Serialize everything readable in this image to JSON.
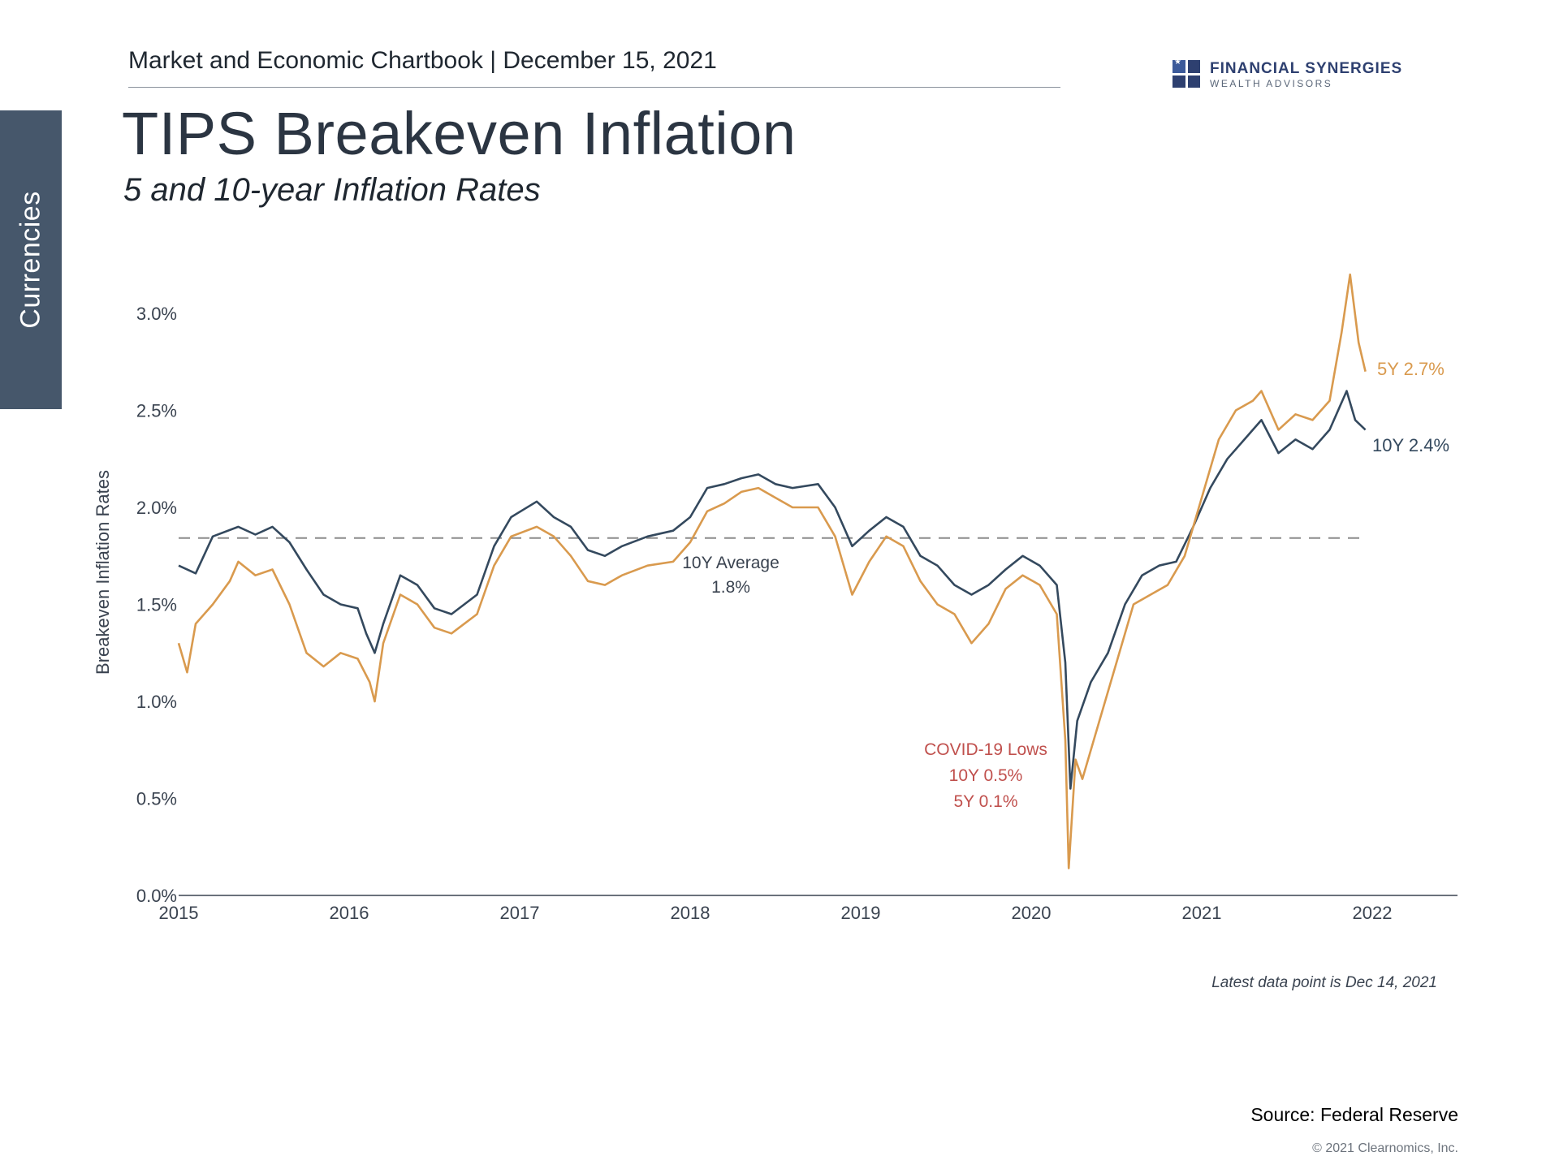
{
  "side_tab": {
    "label": "Currencies"
  },
  "header": {
    "breadcrumb": "Market and Economic Chartbook | December 15, 2021",
    "title": "TIPS Breakeven Inflation",
    "subtitle": "5 and 10-year Inflation Rates"
  },
  "logo": {
    "name": "FINANCIAL SYNERGIES",
    "tagline": "WEALTH ADVISORS",
    "icon": "flag-grid-logo-icon"
  },
  "colors": {
    "ten_year": "#34495e",
    "five_year": "#d99a4e",
    "covid": "#c0504d",
    "average": "#8c8c8c",
    "sidebar": "#46576b"
  },
  "chart_data": {
    "type": "line",
    "title": "TIPS Breakeven Inflation",
    "subtitle": "5 and 10-year Inflation Rates",
    "xlabel": "",
    "ylabel": "Breakeven Inflation Rates",
    "xlim": [
      2015,
      2022.5
    ],
    "ylim": [
      0,
      3.0
    ],
    "y_ticks": [
      "0.0%",
      "0.5%",
      "1.0%",
      "1.5%",
      "2.0%",
      "2.5%",
      "3.0%"
    ],
    "x_ticks": [
      "2015",
      "2016",
      "2017",
      "2018",
      "2019",
      "2020",
      "2021",
      "2022"
    ],
    "series": [
      {
        "name": "10Y",
        "end_label": "10Y 2.4%",
        "points": [
          [
            2015.0,
            1.7
          ],
          [
            2015.1,
            1.66
          ],
          [
            2015.2,
            1.85
          ],
          [
            2015.35,
            1.9
          ],
          [
            2015.45,
            1.86
          ],
          [
            2015.55,
            1.9
          ],
          [
            2015.65,
            1.82
          ],
          [
            2015.75,
            1.68
          ],
          [
            2015.85,
            1.55
          ],
          [
            2015.95,
            1.5
          ],
          [
            2016.05,
            1.48
          ],
          [
            2016.1,
            1.35
          ],
          [
            2016.15,
            1.25
          ],
          [
            2016.2,
            1.4
          ],
          [
            2016.3,
            1.65
          ],
          [
            2016.4,
            1.6
          ],
          [
            2016.5,
            1.48
          ],
          [
            2016.6,
            1.45
          ],
          [
            2016.75,
            1.55
          ],
          [
            2016.85,
            1.8
          ],
          [
            2016.95,
            1.95
          ],
          [
            2017.1,
            2.03
          ],
          [
            2017.2,
            1.95
          ],
          [
            2017.3,
            1.9
          ],
          [
            2017.4,
            1.78
          ],
          [
            2017.5,
            1.75
          ],
          [
            2017.6,
            1.8
          ],
          [
            2017.75,
            1.85
          ],
          [
            2017.9,
            1.88
          ],
          [
            2018.0,
            1.95
          ],
          [
            2018.1,
            2.1
          ],
          [
            2018.2,
            2.12
          ],
          [
            2018.3,
            2.15
          ],
          [
            2018.4,
            2.17
          ],
          [
            2018.5,
            2.12
          ],
          [
            2018.6,
            2.1
          ],
          [
            2018.75,
            2.12
          ],
          [
            2018.85,
            2.0
          ],
          [
            2018.95,
            1.8
          ],
          [
            2019.05,
            1.88
          ],
          [
            2019.15,
            1.95
          ],
          [
            2019.25,
            1.9
          ],
          [
            2019.35,
            1.75
          ],
          [
            2019.45,
            1.7
          ],
          [
            2019.55,
            1.6
          ],
          [
            2019.65,
            1.55
          ],
          [
            2019.75,
            1.6
          ],
          [
            2019.85,
            1.68
          ],
          [
            2019.95,
            1.75
          ],
          [
            2020.05,
            1.7
          ],
          [
            2020.15,
            1.6
          ],
          [
            2020.2,
            1.2
          ],
          [
            2020.23,
            0.55
          ],
          [
            2020.27,
            0.9
          ],
          [
            2020.35,
            1.1
          ],
          [
            2020.45,
            1.25
          ],
          [
            2020.55,
            1.5
          ],
          [
            2020.65,
            1.65
          ],
          [
            2020.75,
            1.7
          ],
          [
            2020.85,
            1.72
          ],
          [
            2020.95,
            1.9
          ],
          [
            2021.05,
            2.1
          ],
          [
            2021.15,
            2.25
          ],
          [
            2021.25,
            2.35
          ],
          [
            2021.35,
            2.45
          ],
          [
            2021.45,
            2.28
          ],
          [
            2021.55,
            2.35
          ],
          [
            2021.65,
            2.3
          ],
          [
            2021.75,
            2.4
          ],
          [
            2021.85,
            2.6
          ],
          [
            2021.9,
            2.45
          ],
          [
            2021.96,
            2.4
          ]
        ]
      },
      {
        "name": "5Y",
        "end_label": "5Y 2.7%",
        "points": [
          [
            2015.0,
            1.3
          ],
          [
            2015.05,
            1.15
          ],
          [
            2015.1,
            1.4
          ],
          [
            2015.2,
            1.5
          ],
          [
            2015.3,
            1.62
          ],
          [
            2015.35,
            1.72
          ],
          [
            2015.45,
            1.65
          ],
          [
            2015.55,
            1.68
          ],
          [
            2015.65,
            1.5
          ],
          [
            2015.75,
            1.25
          ],
          [
            2015.85,
            1.18
          ],
          [
            2015.95,
            1.25
          ],
          [
            2016.05,
            1.22
          ],
          [
            2016.12,
            1.1
          ],
          [
            2016.15,
            1.0
          ],
          [
            2016.2,
            1.3
          ],
          [
            2016.3,
            1.55
          ],
          [
            2016.4,
            1.5
          ],
          [
            2016.5,
            1.38
          ],
          [
            2016.6,
            1.35
          ],
          [
            2016.75,
            1.45
          ],
          [
            2016.85,
            1.7
          ],
          [
            2016.95,
            1.85
          ],
          [
            2017.1,
            1.9
          ],
          [
            2017.2,
            1.85
          ],
          [
            2017.3,
            1.75
          ],
          [
            2017.4,
            1.62
          ],
          [
            2017.5,
            1.6
          ],
          [
            2017.6,
            1.65
          ],
          [
            2017.75,
            1.7
          ],
          [
            2017.9,
            1.72
          ],
          [
            2018.0,
            1.82
          ],
          [
            2018.1,
            1.98
          ],
          [
            2018.2,
            2.02
          ],
          [
            2018.3,
            2.08
          ],
          [
            2018.4,
            2.1
          ],
          [
            2018.5,
            2.05
          ],
          [
            2018.6,
            2.0
          ],
          [
            2018.75,
            2.0
          ],
          [
            2018.85,
            1.85
          ],
          [
            2018.95,
            1.55
          ],
          [
            2019.05,
            1.72
          ],
          [
            2019.15,
            1.85
          ],
          [
            2019.25,
            1.8
          ],
          [
            2019.35,
            1.62
          ],
          [
            2019.45,
            1.5
          ],
          [
            2019.55,
            1.45
          ],
          [
            2019.65,
            1.3
          ],
          [
            2019.75,
            1.4
          ],
          [
            2019.85,
            1.58
          ],
          [
            2019.95,
            1.65
          ],
          [
            2020.05,
            1.6
          ],
          [
            2020.15,
            1.45
          ],
          [
            2020.2,
            0.8
          ],
          [
            2020.22,
            0.14
          ],
          [
            2020.26,
            0.7
          ],
          [
            2020.3,
            0.6
          ],
          [
            2020.4,
            0.9
          ],
          [
            2020.5,
            1.2
          ],
          [
            2020.6,
            1.5
          ],
          [
            2020.7,
            1.55
          ],
          [
            2020.8,
            1.6
          ],
          [
            2020.9,
            1.75
          ],
          [
            2021.0,
            2.05
          ],
          [
            2021.1,
            2.35
          ],
          [
            2021.2,
            2.5
          ],
          [
            2021.3,
            2.55
          ],
          [
            2021.35,
            2.6
          ],
          [
            2021.45,
            2.4
          ],
          [
            2021.55,
            2.48
          ],
          [
            2021.65,
            2.45
          ],
          [
            2021.75,
            2.55
          ],
          [
            2021.82,
            2.9
          ],
          [
            2021.87,
            3.2
          ],
          [
            2021.92,
            2.85
          ],
          [
            2021.96,
            2.7
          ]
        ]
      }
    ],
    "annotations": {
      "average_label": "10Y Average",
      "average_value_label": "1.8%",
      "average_value": 1.8,
      "covid_title": "COVID-19 Lows",
      "covid_10y": "10Y 0.5%",
      "covid_5y": "5Y 0.1%"
    }
  },
  "footer": {
    "note": "Latest data point is Dec 14, 2021",
    "source": "Source: Federal Reserve",
    "copyright": "© 2021 Clearnomics, Inc."
  }
}
